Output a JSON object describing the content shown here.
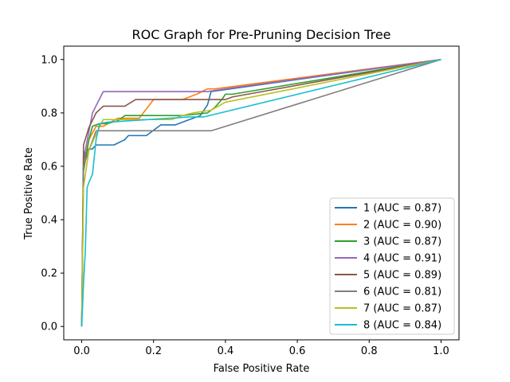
{
  "chart_data": {
    "type": "line",
    "title": "ROC Graph for Pre-Pruning Decision Tree",
    "xlabel": "False Positive Rate",
    "ylabel": "True Positive Rate",
    "xlim": [
      -0.05,
      1.05
    ],
    "ylim": [
      -0.05,
      1.05
    ],
    "x_ticks": [
      0.0,
      0.2,
      0.4,
      0.6,
      0.8,
      1.0
    ],
    "y_ticks": [
      0.0,
      0.2,
      0.4,
      0.6,
      0.8,
      1.0
    ],
    "x_tick_labels": [
      "0.0",
      "0.2",
      "0.4",
      "0.6",
      "0.8",
      "1.0"
    ],
    "y_tick_labels": [
      "0.0",
      "0.2",
      "0.4",
      "0.6",
      "0.8",
      "1.0"
    ],
    "grid": false,
    "legend_position": "lower-right",
    "series": [
      {
        "name": "1 (AUC = 0.87)",
        "color": "#1f77b4",
        "x": [
          0,
          0.005,
          0.01,
          0.02,
          0.03,
          0.04,
          0.09,
          0.12,
          0.13,
          0.18,
          0.2,
          0.22,
          0.26,
          0.29,
          0.33,
          0.35,
          0.36,
          1.0
        ],
        "y": [
          0,
          0.62,
          0.65,
          0.665,
          0.665,
          0.68,
          0.68,
          0.7,
          0.715,
          0.715,
          0.735,
          0.755,
          0.755,
          0.77,
          0.79,
          0.83,
          0.88,
          1.0
        ]
      },
      {
        "name": "2 (AUC = 0.90)",
        "color": "#ff7f0e",
        "x": [
          0,
          0.005,
          0.02,
          0.04,
          0.06,
          0.1,
          0.16,
          0.2,
          0.28,
          0.3,
          0.32,
          0.35,
          0.37,
          1.0
        ],
        "y": [
          0,
          0.6,
          0.7,
          0.75,
          0.75,
          0.78,
          0.78,
          0.85,
          0.85,
          0.86,
          0.87,
          0.89,
          0.89,
          1.0
        ]
      },
      {
        "name": "3 (AUC = 0.87)",
        "color": "#2ca02c",
        "x": [
          0,
          0.005,
          0.02,
          0.03,
          0.05,
          0.07,
          0.1,
          0.12,
          0.2,
          0.28,
          0.35,
          0.37,
          0.39,
          0.4,
          0.42,
          1.0
        ],
        "y": [
          0,
          0.58,
          0.7,
          0.75,
          0.76,
          0.76,
          0.77,
          0.79,
          0.79,
          0.79,
          0.8,
          0.82,
          0.85,
          0.87,
          0.87,
          1.0
        ]
      },
      {
        "name": "4 (AUC = 0.91)",
        "color": "#9467bd",
        "x": [
          0,
          0.005,
          0.01,
          0.03,
          0.06,
          0.35,
          0.4,
          1.0
        ],
        "y": [
          0,
          0.64,
          0.66,
          0.8,
          0.88,
          0.88,
          0.89,
          1.0
        ]
      },
      {
        "name": "5 (AUC = 0.89)",
        "color": "#8c564b",
        "x": [
          0,
          0.005,
          0.02,
          0.04,
          0.06,
          0.12,
          0.15,
          0.22,
          0.4,
          0.42,
          1.0
        ],
        "y": [
          0,
          0.68,
          0.745,
          0.8,
          0.825,
          0.825,
          0.85,
          0.85,
          0.85,
          0.86,
          1.0
        ]
      },
      {
        "name": "6 (AUC = 0.81)",
        "color": "#7f7f7f",
        "x": [
          0,
          0.005,
          0.02,
          0.04,
          0.36,
          1.0
        ],
        "y": [
          0,
          0.6,
          0.66,
          0.733,
          0.733,
          1.0
        ]
      },
      {
        "name": "7 (AUC = 0.87)",
        "color": "#bcbd22",
        "x": [
          0,
          0.005,
          0.02,
          0.04,
          0.06,
          0.25,
          0.28,
          0.31,
          0.36,
          0.4,
          1.0
        ],
        "y": [
          0,
          0.52,
          0.66,
          0.72,
          0.775,
          0.775,
          0.79,
          0.8,
          0.81,
          0.84,
          1.0
        ]
      },
      {
        "name": "8 (AUC = 0.84)",
        "color": "#17becf",
        "x": [
          0,
          0.005,
          0.01,
          0.015,
          0.02,
          0.03,
          0.04,
          0.05,
          0.07,
          0.3,
          0.34,
          1.0
        ],
        "y": [
          0,
          0.16,
          0.28,
          0.52,
          0.54,
          0.57,
          0.7,
          0.76,
          0.765,
          0.785,
          0.785,
          1.0
        ]
      }
    ]
  }
}
